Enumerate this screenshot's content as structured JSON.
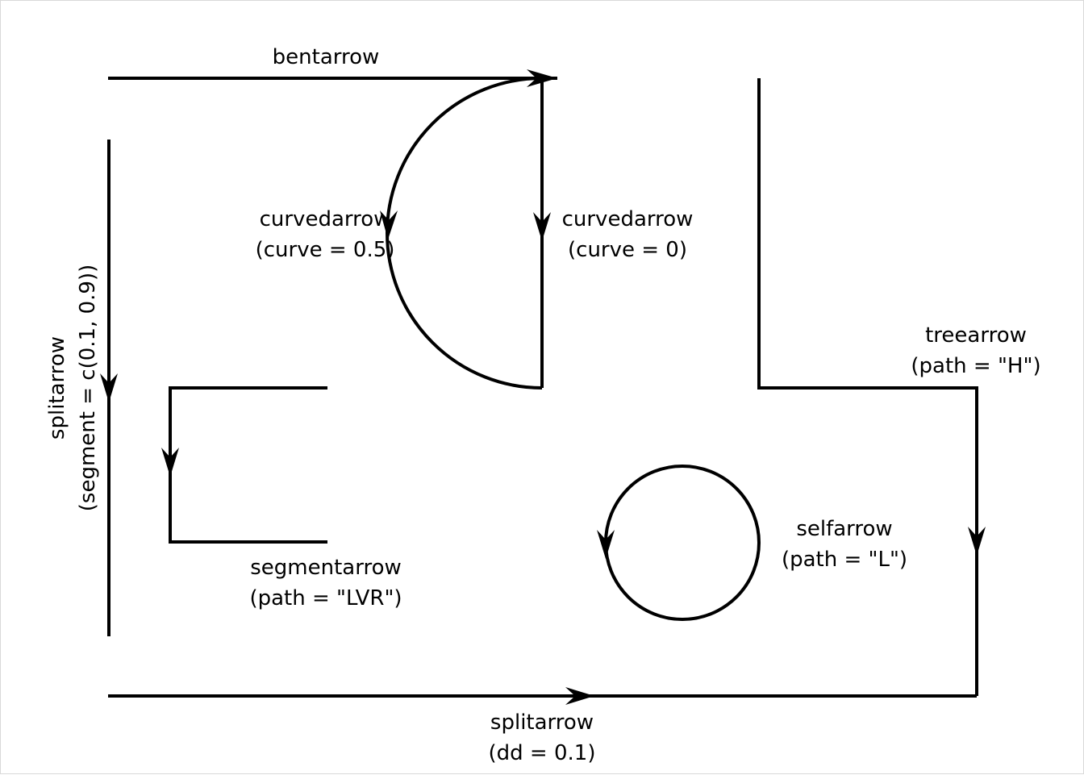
{
  "diagram": {
    "labels": {
      "bentarrow": {
        "line1": "bentarrow"
      },
      "curved_half": {
        "line1": "curvedarrow",
        "line2": "(curve = 0.5)"
      },
      "curved_zero": {
        "line1": "curvedarrow",
        "line2": "(curve = 0)"
      },
      "treearrow": {
        "line1": "treearrow",
        "line2": "(path = \"H\")"
      },
      "split_vertical": {
        "line1": "splitarrow",
        "line2": "(segment = c(0.1, 0.9))"
      },
      "segmentarrow": {
        "line1": "segmentarrow",
        "line2": "(path = \"LVR\")"
      },
      "selfarrow": {
        "line1": "selfarrow",
        "line2": "(path = \"L\")"
      },
      "split_bottom": {
        "line1": "splitarrow",
        "line2": "(dd = 0.1)"
      }
    },
    "colors": {
      "stroke": "#000000",
      "background": "#ffffff",
      "frame": "#d9d9d9"
    }
  }
}
